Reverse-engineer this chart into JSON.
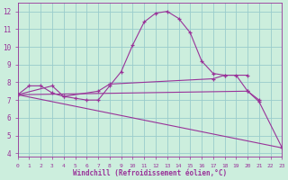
{
  "xlabel": "Windchill (Refroidissement éolien,°C)",
  "bg_color": "#cceedd",
  "grid_color": "#99cccc",
  "line_color": "#993399",
  "xlim": [
    0,
    23
  ],
  "ylim": [
    3.8,
    12.5
  ],
  "yticks": [
    4,
    5,
    6,
    7,
    8,
    9,
    10,
    11,
    12
  ],
  "xticks": [
    0,
    1,
    2,
    3,
    4,
    5,
    6,
    7,
    8,
    9,
    10,
    11,
    12,
    13,
    14,
    15,
    16,
    17,
    18,
    19,
    20,
    21,
    22,
    23
  ],
  "lines": [
    {
      "x": [
        0,
        1,
        2,
        3,
        4,
        5,
        6,
        7,
        8,
        9,
        10,
        11,
        12,
        13,
        14,
        15,
        16,
        17,
        18,
        19,
        20,
        21
      ],
      "y": [
        7.3,
        7.8,
        7.8,
        7.4,
        7.2,
        7.1,
        7.0,
        7.0,
        7.8,
        8.6,
        10.1,
        11.4,
        11.9,
        12.0,
        11.6,
        10.8,
        9.2,
        8.5,
        8.4,
        8.4,
        7.5,
        7.0
      ],
      "marker": true
    },
    {
      "x": [
        0,
        3,
        4,
        7,
        8,
        17,
        18,
        20
      ],
      "y": [
        7.3,
        7.8,
        7.2,
        7.5,
        7.9,
        8.2,
        8.4,
        8.4
      ],
      "marker": true
    },
    {
      "x": [
        0,
        20,
        21,
        23
      ],
      "y": [
        7.3,
        7.5,
        6.9,
        4.3
      ],
      "marker": true
    },
    {
      "x": [
        0,
        23
      ],
      "y": [
        7.3,
        4.3
      ],
      "marker": false
    }
  ],
  "tick_fontsize": 5.5,
  "xlabel_fontsize": 5.5
}
